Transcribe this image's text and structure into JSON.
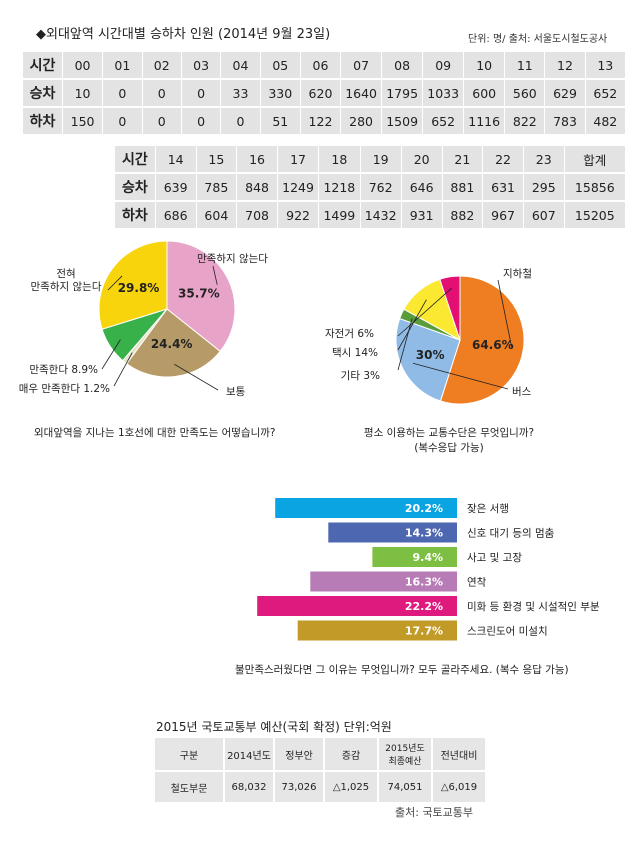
{
  "header": {
    "title": "◆외대앞역 시간대별 승하차 인원 (2014년 9월 23일)",
    "unit": "단위: 명/ 출처: 서울도시철도공사"
  },
  "table_top": {
    "row_labels": [
      "시간",
      "승차",
      "하차"
    ],
    "hours": [
      "00",
      "01",
      "02",
      "03",
      "04",
      "05",
      "06",
      "07",
      "08",
      "09",
      "10",
      "11",
      "12",
      "13"
    ],
    "board": [
      "10",
      "0",
      "0",
      "0",
      "33",
      "330",
      "620",
      "1640",
      "1795",
      "1033",
      "600",
      "560",
      "629",
      "652"
    ],
    "alight": [
      "150",
      "0",
      "0",
      "0",
      "0",
      "51",
      "122",
      "280",
      "1509",
      "652",
      "1116",
      "822",
      "783",
      "482"
    ]
  },
  "table_bottom": {
    "row_labels": [
      "시간",
      "승차",
      "하차"
    ],
    "hours": [
      "14",
      "15",
      "16",
      "17",
      "18",
      "19",
      "20",
      "21",
      "22",
      "23",
      "합계"
    ],
    "board": [
      "639",
      "785",
      "848",
      "1249",
      "1218",
      "762",
      "646",
      "881",
      "631",
      "295",
      "15856"
    ],
    "alight": [
      "686",
      "604",
      "708",
      "922",
      "1499",
      "1432",
      "931",
      "882",
      "967",
      "607",
      "15205"
    ]
  },
  "chart_data": [
    {
      "type": "pie",
      "title": "외대앞역을 지나는 1호선에 대한 만족도는 어떻습니까?",
      "labels": [
        "만족하지 않는다",
        "보통",
        "매우 만족한다",
        "만족한다",
        "전혀 만족하지 않는다"
      ],
      "label_texts": [
        "만족하지 않는다",
        "보통",
        "매우 만족한다 1.2%",
        "만족한다 8.9%",
        "전혀 만족하지 않는다"
      ],
      "label_lines": [
        [
          "만족하지 않는다"
        ],
        [
          "보통"
        ],
        [
          "매우 만족한다 1.2%"
        ],
        [
          "만족한다 8.9%"
        ],
        [
          "전혀",
          "만족하지 않는다"
        ]
      ],
      "values": [
        35.7,
        24.4,
        1.2,
        8.9,
        29.8
      ],
      "value_labels": [
        "35.7%",
        "24.4%",
        "",
        "",
        "29.8%"
      ],
      "colors": [
        "#e8a4c8",
        "#b69b68",
        "#e7e2c8",
        "#38b14a",
        "#f7d40b"
      ]
    },
    {
      "type": "pie",
      "title": "평소 이용하는 교통수단은 무엇입니까?",
      "subtitle": "(복수응답 가능)",
      "labels": [
        "지하철",
        "버스",
        "기타",
        "택시",
        "자전거"
      ],
      "label_texts": [
        "지하철",
        "버스",
        "기타 3%",
        "택시 14%",
        "자전거 6%"
      ],
      "values": [
        64.6,
        30,
        3,
        14,
        6
      ],
      "value_labels": [
        "64.6%",
        "30%",
        "",
        "",
        ""
      ],
      "colors": [
        "#ef7d22",
        "#8fbbe6",
        "#5a9c3c",
        "#fbe830",
        "#e40f72"
      ]
    },
    {
      "type": "bar",
      "orientation": "horizontal",
      "title": "불만족스러웠다면 그 이유는 무엇입니까? 모두 골라주세요. (복수 응답 가능)",
      "categories": [
        "잦은 서행",
        "신호 대기 등의 멈춤",
        "사고 및 고장",
        "연착",
        "미화 등 환경 및 시설적인 부분",
        "스크린도어 미설치"
      ],
      "values": [
        20.2,
        14.3,
        9.4,
        16.3,
        22.2,
        17.7
      ],
      "value_labels": [
        "20.2%",
        "14.3%",
        "9.4%",
        "16.3%",
        "22.2%",
        "17.7%"
      ],
      "colors": [
        "#0ba4e2",
        "#4d67b0",
        "#7dbf43",
        "#b77cb5",
        "#df1a7e",
        "#c29a27"
      ]
    }
  ],
  "budget": {
    "title": "2015년 국토교통부 예산(국회 확정) 단위:억원",
    "headers": [
      "구분",
      "2014년도",
      "정부안",
      "증감",
      "2015년도 최종예산",
      "전년대비"
    ],
    "header_lines": [
      [
        "구분"
      ],
      [
        "2014년도"
      ],
      [
        "정부안"
      ],
      [
        "증감"
      ],
      [
        "2015년도",
        "최종예산"
      ],
      [
        "전년대비"
      ]
    ],
    "row": [
      "철도부문",
      "68,032",
      "73,026",
      "△1,025",
      "74,051",
      "△6,019"
    ],
    "source": "출처: 국토교통부"
  }
}
